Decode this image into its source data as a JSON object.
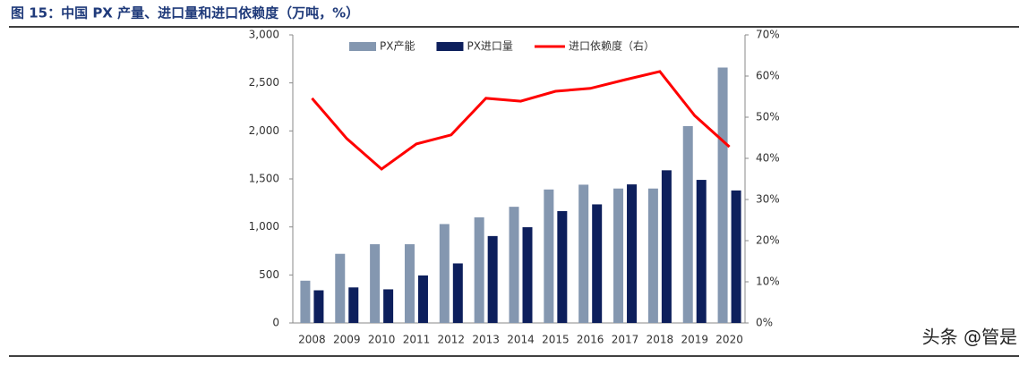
{
  "chart_data": {
    "type": "bar",
    "title": "图 15：中国 PX 产量、进口量和进口依赖度（万吨，%）",
    "watermark": "头条 @管是",
    "categories": [
      "2008",
      "2009",
      "2010",
      "2011",
      "2012",
      "2013",
      "2014",
      "2015",
      "2016",
      "2017",
      "2018",
      "2019",
      "2020"
    ],
    "series": [
      {
        "name": "PX产能",
        "color": "#8497b0",
        "values": [
          440,
          720,
          820,
          820,
          1030,
          1100,
          1210,
          1390,
          1440,
          1400,
          1400,
          2050,
          2660
        ]
      },
      {
        "name": "PX进口量",
        "color": "#0d1f5c",
        "values": [
          340,
          370,
          350,
          495,
          620,
          905,
          997,
          1165,
          1235,
          1443,
          1590,
          1490,
          1380
        ]
      },
      {
        "name": "进口依赖度（右）",
        "color": "#ff0000",
        "type": "line",
        "axis": "y2",
        "values": [
          54.6,
          44.8,
          37.4,
          43.5,
          45.7,
          54.6,
          53.9,
          56.3,
          57.0,
          59.1,
          61.1,
          50.4,
          42.8
        ]
      }
    ],
    "ylim": [
      0,
      3000
    ],
    "yticks": [
      0,
      500,
      {
        "value": 1000,
        "label": "1,000"
      },
      {
        "value": 1500,
        "label": "1,500"
      },
      {
        "value": 2000,
        "label": "2,000"
      },
      {
        "value": 2500,
        "label": "2,500"
      },
      {
        "value": 3000,
        "label": "3,000"
      }
    ],
    "y2lim": [
      0,
      70
    ],
    "y2ticks": [
      {
        "value": 0,
        "label": "0%"
      },
      {
        "value": 10,
        "label": "10%"
      },
      {
        "value": 20,
        "label": "20%"
      },
      {
        "value": 30,
        "label": "30%"
      },
      {
        "value": 40,
        "label": "40%"
      },
      {
        "value": 50,
        "label": "50%"
      },
      {
        "value": 60,
        "label": "60%"
      },
      {
        "value": 70,
        "label": "70%"
      }
    ],
    "grid": false,
    "legend": "top"
  }
}
